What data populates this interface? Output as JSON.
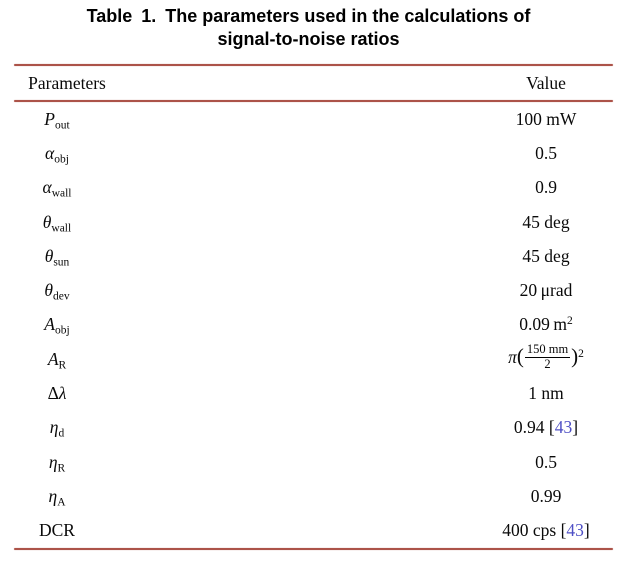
{
  "caption": {
    "line1": "Table 1. The parameters used in the calculations of",
    "line2": "signal-to-noise ratios"
  },
  "colors": {
    "background": "#ffffff",
    "text": "#0a0a0a",
    "rule": "#ac5349",
    "citation": "#4f50c5"
  },
  "table": {
    "headers": {
      "parameter": "Parameters",
      "value": "Value"
    },
    "rows": [
      {
        "param": [
          {
            "t": "P",
            "i": 1
          },
          {
            "t": "out",
            "sub": 1
          }
        ],
        "value": [
          {
            "t": "100 mW"
          }
        ]
      },
      {
        "param": [
          {
            "t": "α",
            "i": 1
          },
          {
            "t": "obj",
            "sub": 1
          }
        ],
        "value": [
          {
            "t": "0.5"
          }
        ]
      },
      {
        "param": [
          {
            "t": "α",
            "i": 1
          },
          {
            "t": "wall",
            "sub": 1
          }
        ],
        "value": [
          {
            "t": "0.9"
          }
        ]
      },
      {
        "param": [
          {
            "t": "θ",
            "i": 1
          },
          {
            "t": "wall",
            "sub": 1
          }
        ],
        "value": [
          {
            "t": "45 deg"
          }
        ]
      },
      {
        "param": [
          {
            "t": "θ",
            "i": 1
          },
          {
            "t": "sun",
            "sub": 1
          }
        ],
        "value": [
          {
            "t": "45 deg"
          }
        ]
      },
      {
        "param": [
          {
            "t": "θ",
            "i": 1
          },
          {
            "t": "dev",
            "sub": 1
          }
        ],
        "value": [
          {
            "t": "20 μrad"
          }
        ]
      },
      {
        "param": [
          {
            "t": "A",
            "i": 1
          },
          {
            "t": "obj",
            "sub": 1
          }
        ],
        "value": [
          {
            "t": "0.09 m"
          },
          {
            "t": "2",
            "sup": 1
          }
        ]
      },
      {
        "param": [
          {
            "t": "A",
            "i": 1
          },
          {
            "t": "R",
            "sub": 1
          }
        ],
        "value": [
          {
            "t": "π",
            "i": 1
          },
          {
            "t": "(",
            "paren": 1
          },
          {
            "frac": {
              "num": "150 mm",
              "den": "2"
            }
          },
          {
            "t": ")",
            "paren": 1
          },
          {
            "t": "2",
            "sup": 1
          }
        ]
      },
      {
        "param": [
          {
            "t": "Δ"
          },
          {
            "t": "λ",
            "i": 1
          }
        ],
        "value": [
          {
            "t": "1 nm"
          }
        ]
      },
      {
        "param": [
          {
            "t": "η",
            "i": 1
          },
          {
            "t": "d",
            "sub": 1
          }
        ],
        "value": [
          {
            "t": "0.94 "
          },
          {
            "t": "["
          },
          {
            "t": "43",
            "cite": 1
          },
          {
            "t": "]"
          }
        ]
      },
      {
        "param": [
          {
            "t": "η",
            "i": 1
          },
          {
            "t": "R",
            "sub": 1
          }
        ],
        "value": [
          {
            "t": "0.5"
          }
        ]
      },
      {
        "param": [
          {
            "t": "η",
            "i": 1
          },
          {
            "t": "A",
            "sub": 1
          }
        ],
        "value": [
          {
            "t": "0.99"
          }
        ]
      },
      {
        "param": [
          {
            "t": "DCR"
          }
        ],
        "value": [
          {
            "t": "400 cps "
          },
          {
            "t": "["
          },
          {
            "t": "43",
            "cite": 1
          },
          {
            "t": "]"
          }
        ]
      }
    ]
  }
}
